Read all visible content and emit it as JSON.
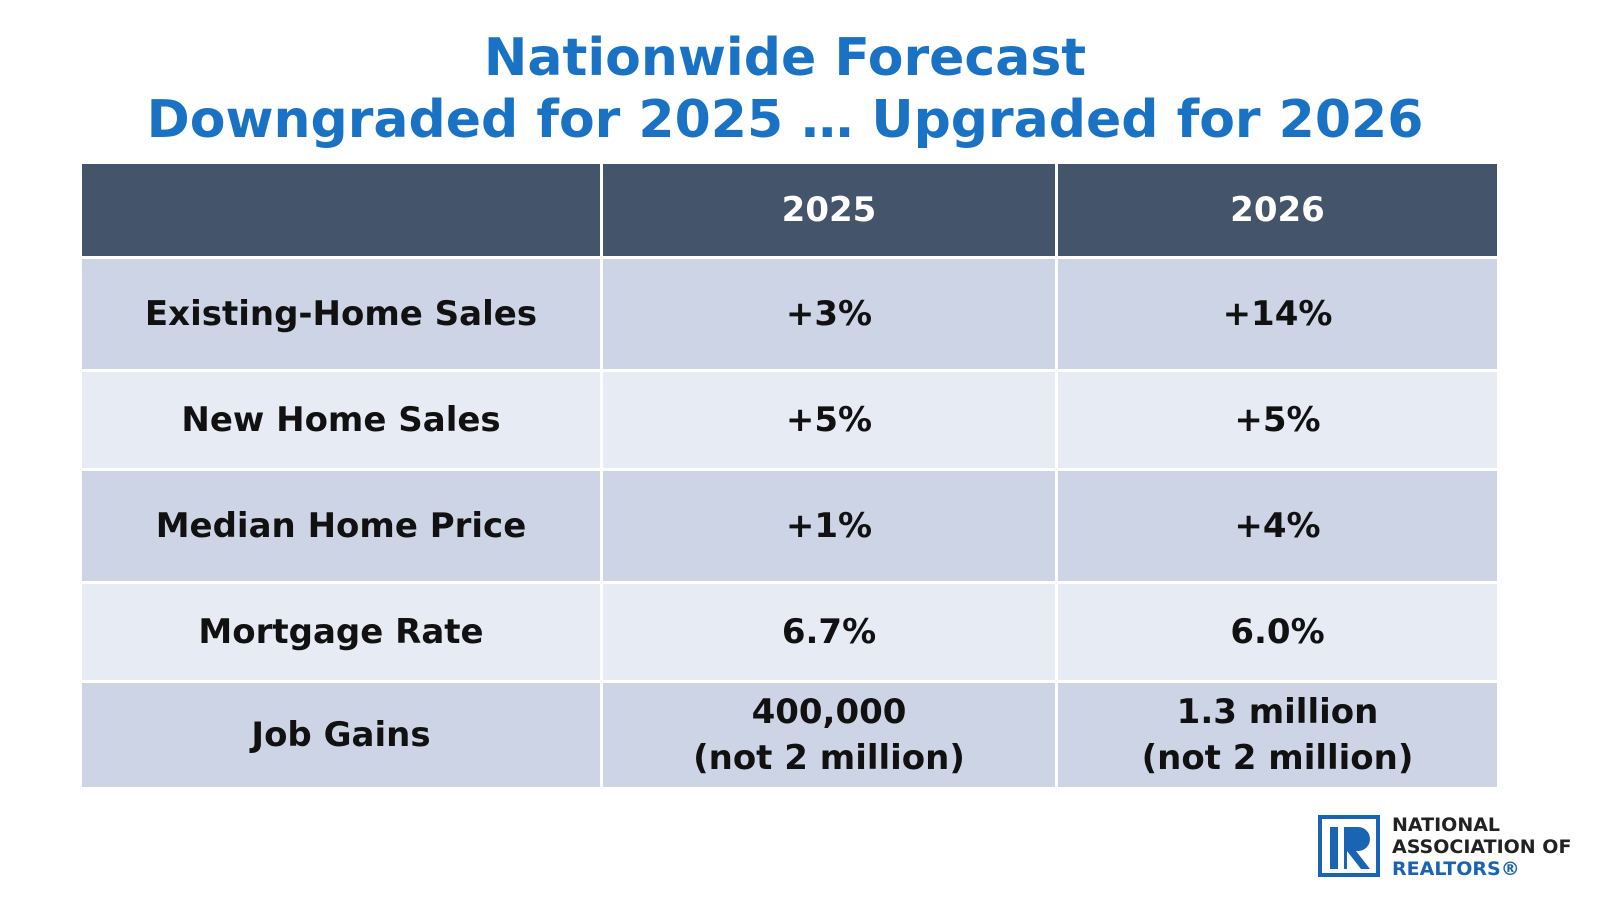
{
  "title": {
    "line1": "Nationwide Forecast",
    "line2": "Downgraded for 2025 … Upgraded for 2026"
  },
  "table": {
    "header": [
      "2025",
      "2026"
    ],
    "rows": [
      [
        "Existing-Home Sales",
        "+3%",
        "+14%"
      ],
      [
        "New Home Sales",
        "+5%",
        "+5%"
      ],
      [
        "Median Home Price",
        "+1%",
        "+4%"
      ],
      [
        "Mortgage Rate",
        "6.7%",
        "6.0%"
      ],
      [
        "Job Gains",
        [
          "400,000",
          "(not 2 million)"
        ],
        [
          "1.3 million",
          "(not 2 million)"
        ]
      ]
    ]
  },
  "logo": {
    "line1": "NATIONAL",
    "line2": "ASSOCIATION OF",
    "line3": "REALTORS®"
  }
}
